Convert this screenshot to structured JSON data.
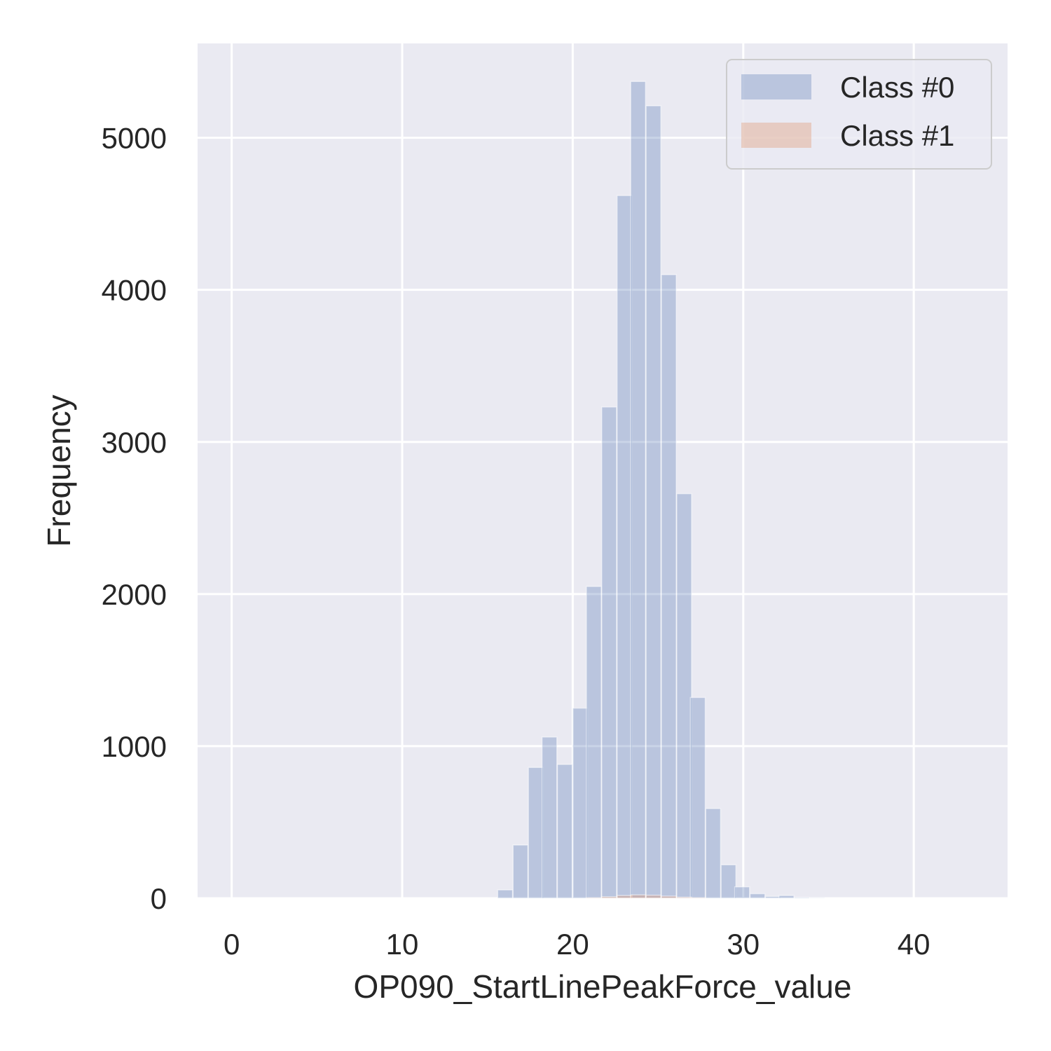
{
  "chart_data": {
    "type": "histogram",
    "xlabel": "OP090_StartLinePeakForce_value",
    "ylabel": "Frequency",
    "xlim": [
      -2,
      45.5
    ],
    "ylim": [
      0,
      5620
    ],
    "xticks": [
      0,
      10,
      20,
      30,
      40
    ],
    "yticks": [
      0,
      1000,
      2000,
      3000,
      4000,
      5000
    ],
    "grid": true,
    "legend_position": "top-right",
    "bin_width": 0.87,
    "series": [
      {
        "name": "Class #0",
        "color": "#4c72b0",
        "opacity": 0.3,
        "bins": [
          {
            "x": 15.6,
            "count": 55
          },
          {
            "x": 16.5,
            "count": 350
          },
          {
            "x": 17.4,
            "count": 860
          },
          {
            "x": 18.2,
            "count": 1060
          },
          {
            "x": 19.1,
            "count": 880
          },
          {
            "x": 20.0,
            "count": 1250
          },
          {
            "x": 20.8,
            "count": 2050
          },
          {
            "x": 21.7,
            "count": 3230
          },
          {
            "x": 22.6,
            "count": 4620
          },
          {
            "x": 23.4,
            "count": 5370
          },
          {
            "x": 24.3,
            "count": 5210
          },
          {
            "x": 25.2,
            "count": 4100
          },
          {
            "x": 26.1,
            "count": 2660
          },
          {
            "x": 26.9,
            "count": 1320
          },
          {
            "x": 27.8,
            "count": 590
          },
          {
            "x": 28.7,
            "count": 220
          },
          {
            "x": 29.5,
            "count": 75
          },
          {
            "x": 30.4,
            "count": 30
          },
          {
            "x": 31.3,
            "count": 12
          },
          {
            "x": 32.1,
            "count": 18
          },
          {
            "x": 33.0,
            "count": 5
          },
          {
            "x": 33.9,
            "count": 2
          }
        ]
      },
      {
        "name": "Class #1",
        "color": "#dd8452",
        "opacity": 0.3,
        "bins": [
          {
            "x": 20.8,
            "count": 3
          },
          {
            "x": 21.7,
            "count": 10
          },
          {
            "x": 22.6,
            "count": 18
          },
          {
            "x": 23.4,
            "count": 22
          },
          {
            "x": 24.3,
            "count": 20
          },
          {
            "x": 25.2,
            "count": 14
          },
          {
            "x": 26.1,
            "count": 7
          },
          {
            "x": 26.9,
            "count": 3
          }
        ]
      }
    ]
  }
}
